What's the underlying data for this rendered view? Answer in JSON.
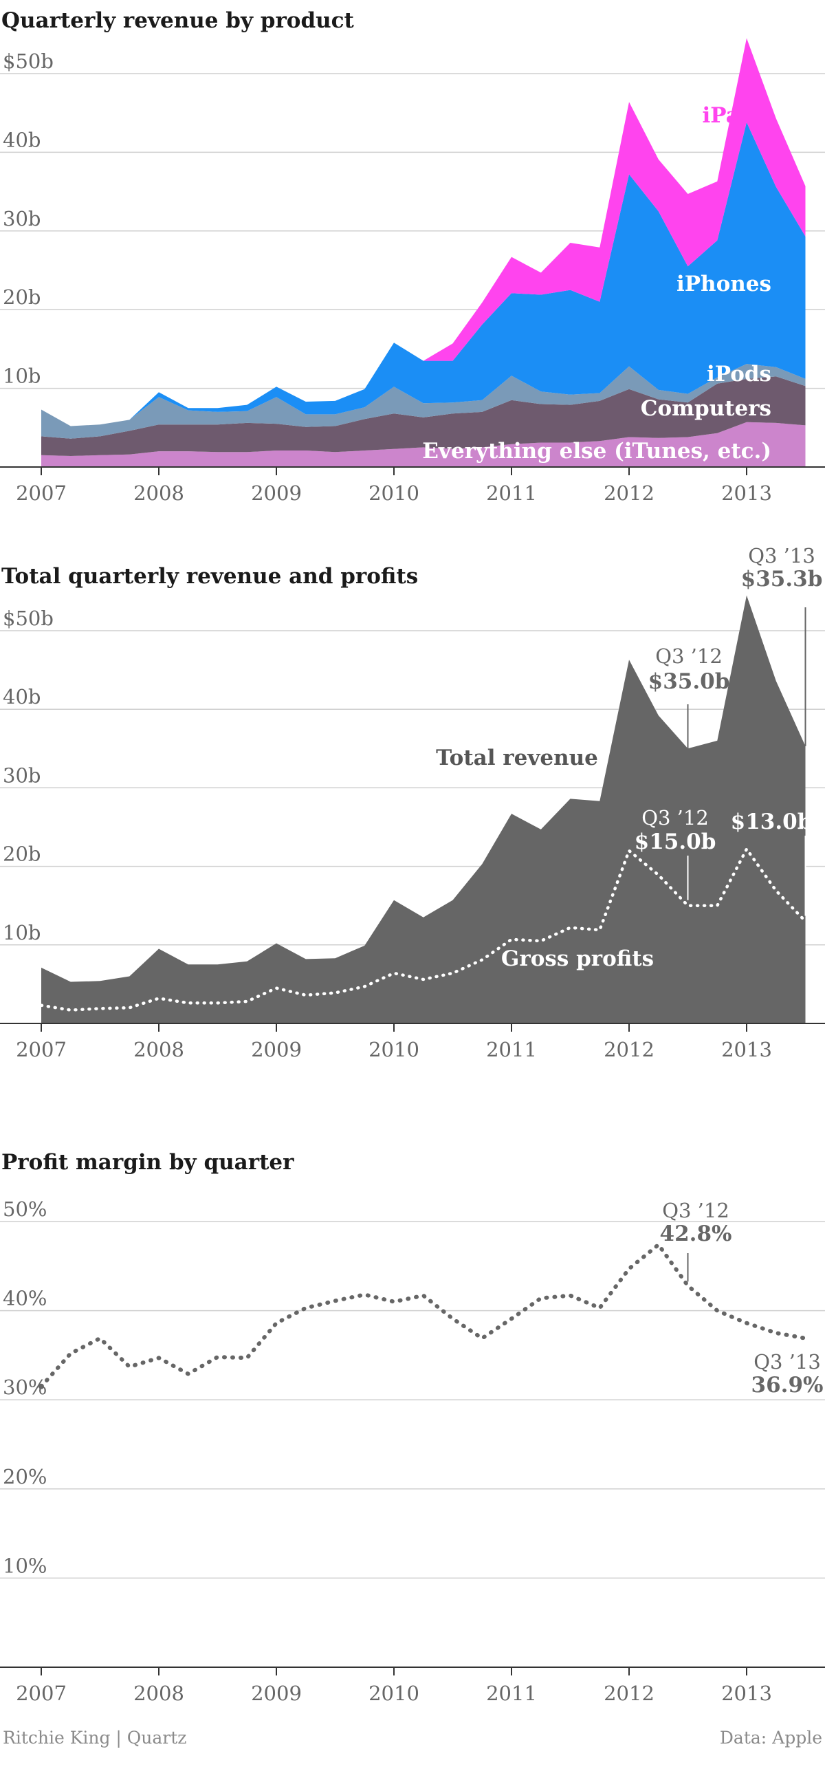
{
  "footer": {
    "credit": "Ritchie King | Quartz",
    "source": "Data: Apple"
  },
  "colors": {
    "everything_else": "#cc85cc",
    "computers": "#6e5a6e",
    "ipods": "#7a9ab8",
    "iphones": "#1b8ef5",
    "ipads": "#ff44ee",
    "revenue_gray": "#666666",
    "profit_dots": "#666666",
    "grid": "#cfcfcf",
    "axis_text": "#666666"
  },
  "chart_data": [
    {
      "type": "area",
      "stacked": true,
      "title": "Quarterly revenue by product",
      "y_unit": "$ billions",
      "ylim": [
        0,
        50
      ],
      "y_ticks": [
        10,
        20,
        30,
        40,
        50
      ],
      "y_tick_labels": [
        "10b",
        "20b",
        "30b",
        "40b",
        "$50b"
      ],
      "x_ticks": [
        2007,
        2008,
        2009,
        2010,
        2011,
        2012,
        2013
      ],
      "x_tick_labels": [
        "2007",
        "2008",
        "2009",
        "2010",
        "2011",
        "2012",
        "2013"
      ],
      "x": [
        2007.0,
        2007.25,
        2007.5,
        2007.75,
        2008.0,
        2008.25,
        2008.5,
        2008.75,
        2009.0,
        2009.25,
        2009.5,
        2009.75,
        2010.0,
        2010.25,
        2010.5,
        2010.75,
        2011.0,
        2011.25,
        2011.5,
        2011.75,
        2012.0,
        2012.25,
        2012.5,
        2012.75,
        2013.0,
        2013.25,
        2013.5
      ],
      "series": [
        {
          "name": "Everything else (iTunes, etc.)",
          "label_color": "#ffffff",
          "values": [
            1.5,
            1.4,
            1.5,
            1.6,
            2.0,
            2.0,
            1.9,
            1.9,
            2.1,
            2.1,
            1.9,
            2.1,
            2.3,
            2.5,
            2.3,
            2.5,
            2.9,
            3.1,
            3.1,
            3.3,
            3.8,
            3.7,
            3.8,
            4.3,
            5.7,
            5.6,
            5.3
          ]
        },
        {
          "name": "Computers",
          "label_color": "#ffffff",
          "values": [
            2.4,
            2.2,
            2.4,
            3.0,
            3.4,
            3.4,
            3.5,
            3.7,
            3.4,
            3.0,
            3.3,
            4.0,
            4.5,
            3.8,
            4.5,
            4.5,
            5.6,
            4.9,
            4.8,
            5.1,
            6.1,
            4.9,
            4.4,
            6.3,
            5.5,
            5.9,
            5.0
          ]
        },
        {
          "name": "iPods",
          "label_color": "#ffffff",
          "values": [
            3.4,
            1.6,
            1.5,
            1.4,
            3.5,
            1.8,
            1.6,
            1.5,
            3.4,
            1.6,
            1.5,
            1.5,
            3.4,
            1.8,
            1.4,
            1.5,
            3.1,
            1.6,
            1.3,
            1.0,
            2.9,
            1.2,
            1.1,
            0.8,
            1.9,
            1.2,
            0.9
          ]
        },
        {
          "name": "iPhones",
          "label_color": "#ffffff",
          "values": [
            0,
            0,
            0,
            0,
            0.6,
            0.3,
            0.5,
            0.8,
            1.3,
            1.6,
            1.7,
            2.3,
            5.6,
            5.4,
            5.3,
            9.6,
            10.5,
            12.3,
            13.3,
            11.6,
            24.4,
            22.7,
            16.2,
            17.4,
            30.7,
            22.9,
            18.1
          ]
        },
        {
          "name": "iPads",
          "label_color": "#ff44ee",
          "values": [
            0,
            0,
            0,
            0,
            0,
            0,
            0,
            0,
            0,
            0,
            0,
            0,
            0,
            0,
            2.2,
            2.8,
            4.6,
            2.8,
            6.0,
            6.9,
            9.2,
            6.6,
            9.2,
            7.5,
            10.7,
            8.7,
            6.4
          ]
        }
      ]
    },
    {
      "type": "area",
      "title": "Total quarterly revenue and profits",
      "y_unit": "$ billions",
      "ylim": [
        0,
        50
      ],
      "y_ticks": [
        10,
        20,
        30,
        40,
        50
      ],
      "y_tick_labels": [
        "10b",
        "20b",
        "30b",
        "40b",
        "$50b"
      ],
      "x_ticks": [
        2007,
        2008,
        2009,
        2010,
        2011,
        2012,
        2013
      ],
      "x_tick_labels": [
        "2007",
        "2008",
        "2009",
        "2010",
        "2011",
        "2012",
        "2013"
      ],
      "x": [
        2007.0,
        2007.25,
        2007.5,
        2007.75,
        2008.0,
        2008.25,
        2008.5,
        2008.75,
        2009.0,
        2009.25,
        2009.5,
        2009.75,
        2010.0,
        2010.25,
        2010.5,
        2010.75,
        2011.0,
        2011.25,
        2011.5,
        2011.75,
        2012.0,
        2012.25,
        2012.5,
        2012.75,
        2013.0,
        2013.25,
        2013.5
      ],
      "series": [
        {
          "name": "Total revenue",
          "style": "filled-area",
          "values": [
            7.1,
            5.3,
            5.4,
            6.0,
            9.5,
            7.5,
            7.5,
            7.9,
            10.2,
            8.2,
            8.3,
            9.9,
            15.7,
            13.5,
            15.7,
            20.3,
            26.7,
            24.7,
            28.6,
            28.3,
            46.3,
            39.2,
            35.0,
            36.0,
            54.5,
            43.6,
            35.3
          ]
        },
        {
          "name": "Gross profits",
          "style": "dotted-line",
          "values": [
            2.3,
            1.7,
            1.9,
            2.0,
            3.2,
            2.6,
            2.6,
            2.8,
            4.5,
            3.6,
            3.9,
            4.7,
            6.4,
            5.6,
            6.4,
            8.1,
            10.7,
            10.5,
            12.2,
            11.9,
            22.0,
            18.9,
            15.0,
            15.0,
            22.2,
            16.9,
            13.0
          ]
        }
      ],
      "annotations": [
        {
          "line1": "Q3 ’12",
          "line2": "$35.0b",
          "x": 2012.5,
          "y": 35.0,
          "color": "#666666"
        },
        {
          "line1": "Q3 ’13",
          "line2": "$35.3b",
          "x": 2013.5,
          "y": 35.3,
          "color": "#666666"
        },
        {
          "line1": "Q3 ’12",
          "line2": "$15.0b",
          "x": 2012.5,
          "y": 15.0,
          "color": "#ffffff"
        },
        {
          "line1": "",
          "line2": "$13.0b",
          "x": 2013.5,
          "y": 13.0,
          "color": "#ffffff"
        }
      ]
    },
    {
      "type": "line",
      "title": "Profit margin by quarter",
      "y_unit": "%",
      "ylim": [
        0,
        50
      ],
      "y_ticks": [
        10,
        20,
        30,
        40,
        50
      ],
      "y_tick_labels": [
        "10%",
        "20%",
        "30%",
        "40%",
        "50%"
      ],
      "x_ticks": [
        2007,
        2008,
        2009,
        2010,
        2011,
        2012,
        2013
      ],
      "x_tick_labels": [
        "2007",
        "2008",
        "2009",
        "2010",
        "2011",
        "2012",
        "2013"
      ],
      "x": [
        2007.0,
        2007.25,
        2007.5,
        2007.75,
        2008.0,
        2008.25,
        2008.5,
        2008.75,
        2009.0,
        2009.25,
        2009.5,
        2009.75,
        2010.0,
        2010.25,
        2010.5,
        2010.75,
        2011.0,
        2011.25,
        2011.5,
        2011.75,
        2012.0,
        2012.25,
        2012.5,
        2012.75,
        2013.0,
        2013.25,
        2013.5
      ],
      "series": [
        {
          "name": "Profit margin",
          "style": "dotted-line",
          "values": [
            31.5,
            35.2,
            36.9,
            33.7,
            34.7,
            32.9,
            34.8,
            34.7,
            38.6,
            40.3,
            41.1,
            41.8,
            41.0,
            41.7,
            39.1,
            36.9,
            39.1,
            41.4,
            41.7,
            40.3,
            44.7,
            47.4,
            42.8,
            40.0,
            38.6,
            37.5,
            36.9
          ]
        }
      ],
      "annotations": [
        {
          "line1": "Q3 ’12",
          "line2": "42.8%",
          "x": 2012.5,
          "y": 42.8
        },
        {
          "line1": "Q3 ’13",
          "line2": "36.9%",
          "x": 2013.5,
          "y": 36.9
        }
      ]
    }
  ]
}
